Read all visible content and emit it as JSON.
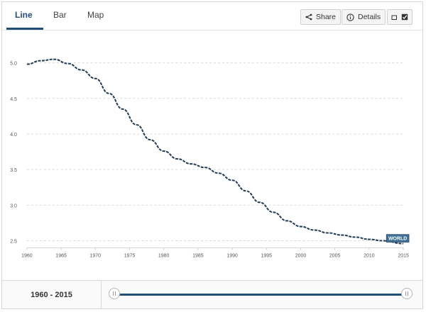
{
  "tabs": [
    {
      "label": "Line",
      "active": true
    },
    {
      "label": "Bar",
      "active": false
    },
    {
      "label": "Map",
      "active": false
    }
  ],
  "toolbar": {
    "share_label": "Share",
    "details_label": "Details"
  },
  "range": {
    "label": "1960 - 2015"
  },
  "icons": [
    "share-icon",
    "info-icon",
    "window-icon",
    "checkbox-icon",
    "slider-grip-icon"
  ],
  "colors": {
    "accent": "#1f4f7a",
    "line": "#1f3b57",
    "label_box": "#3d6e96"
  },
  "chart_data": {
    "type": "line",
    "x_range": [
      1960,
      2015
    ],
    "ylim": [
      2.4,
      5.25
    ],
    "y_ticks": [
      "5.0",
      "4.5",
      "4.0",
      "3.5",
      "3.0",
      "2.5"
    ],
    "x_ticks": [
      "1960",
      "1965",
      "1970",
      "1975",
      "1980",
      "1985",
      "1990",
      "1995",
      "2000",
      "2005",
      "2010",
      "2015"
    ],
    "grid": true,
    "series": [
      {
        "name": "WORLD",
        "x": [
          1960,
          1962,
          1964,
          1966,
          1968,
          1970,
          1972,
          1974,
          1976,
          1978,
          1980,
          1982,
          1984,
          1986,
          1988,
          1990,
          1992,
          1994,
          1996,
          1998,
          2000,
          2002,
          2004,
          2006,
          2008,
          2010,
          2012,
          2015
        ],
        "values": [
          4.98,
          5.03,
          5.05,
          4.99,
          4.9,
          4.78,
          4.57,
          4.35,
          4.13,
          3.92,
          3.76,
          3.65,
          3.58,
          3.53,
          3.45,
          3.35,
          3.2,
          3.04,
          2.9,
          2.78,
          2.7,
          2.65,
          2.61,
          2.58,
          2.55,
          2.52,
          2.5,
          2.46
        ]
      }
    ]
  }
}
